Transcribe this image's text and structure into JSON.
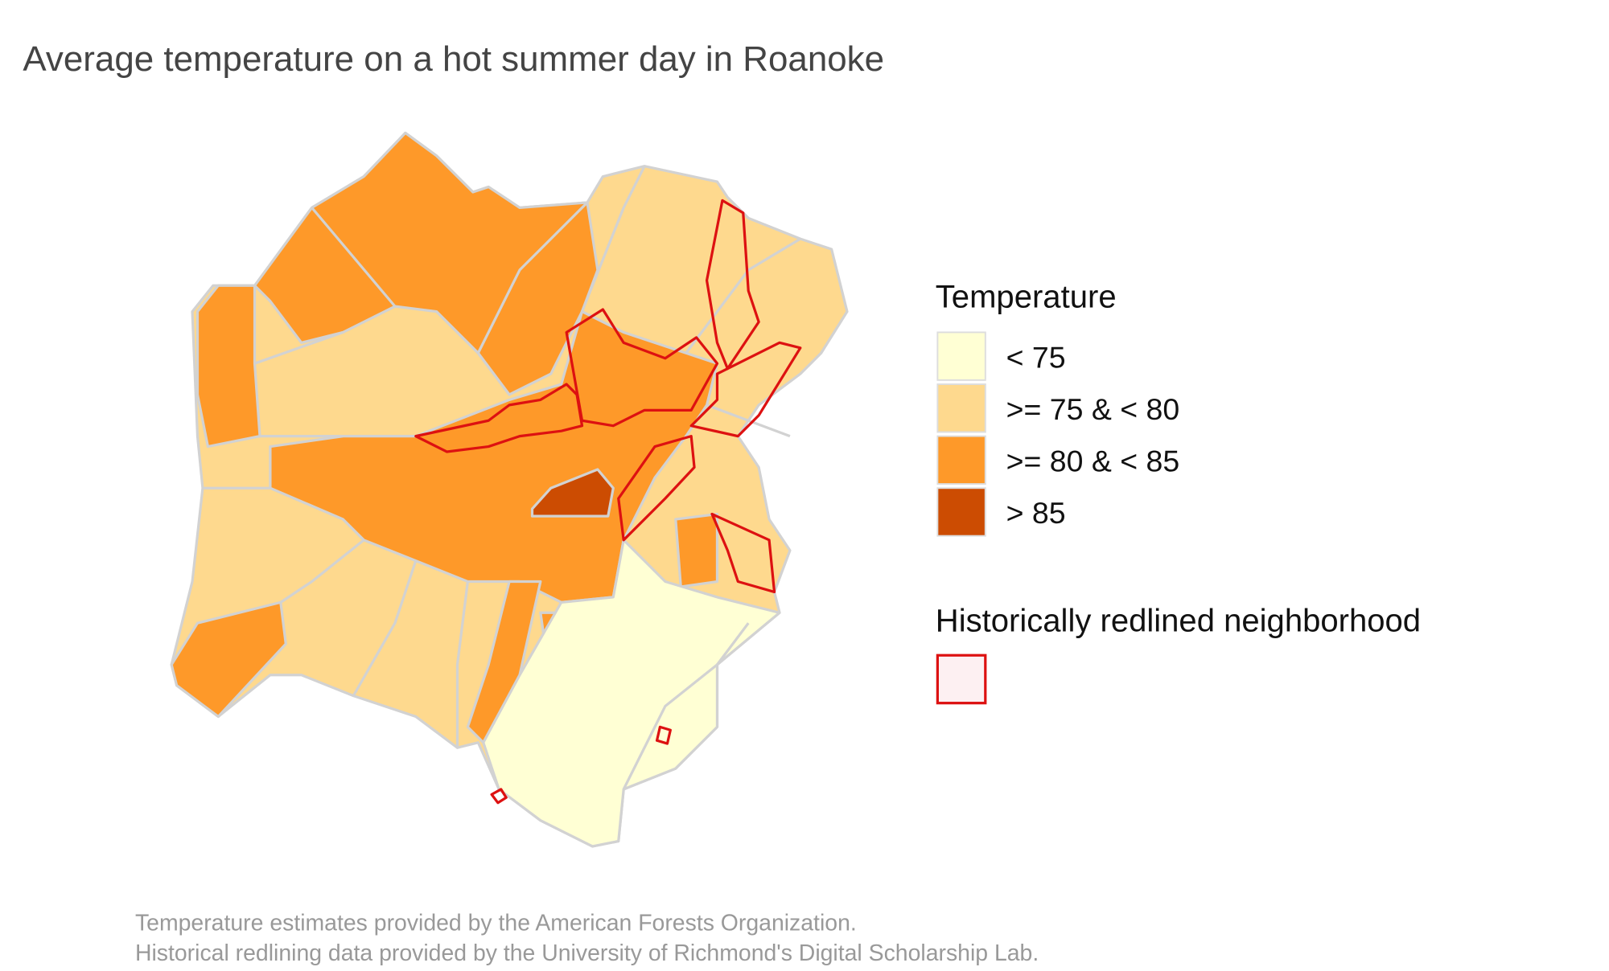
{
  "title": "Average temperature on a hot summer day in Roanoke",
  "legends": [
    {
      "title": "Temperature",
      "items": [
        {
          "label": "< 75",
          "color": "#ffffd4"
        },
        {
          "label": ">= 75 & < 80",
          "color": "#fed98e"
        },
        {
          "label": ">= 80 & < 85",
          "color": "#fe9929"
        },
        {
          "label": "> 85",
          "color": "#cc4c02"
        }
      ]
    },
    {
      "title": "Historically redlined neighborhood",
      "items": [
        {
          "color": "#fdf0f2",
          "stroke": "#dd1111"
        }
      ]
    }
  ],
  "captions": [
    "Temperature estimates provided by the American Forests Organization.",
    "Historical redlining data provided by the University of Richmond's Digital Scholarship Lab."
  ]
}
